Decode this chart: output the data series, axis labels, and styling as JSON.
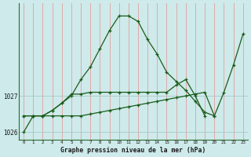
{
  "xlabel": "Graphe pression niveau de la mer (hPa)",
  "background_color": "#ceeaea",
  "vgrid_color": "#e89090",
  "hgrid_color": "#a0c4c4",
  "line_color": "#1a5c1a",
  "spine_color": "#2d6a2d",
  "hours": [
    0,
    1,
    2,
    3,
    4,
    5,
    6,
    7,
    8,
    9,
    10,
    11,
    12,
    13,
    14,
    15,
    16,
    17,
    18,
    19,
    20,
    21,
    22,
    23
  ],
  "line1": [
    1026.0,
    1026.45,
    1026.45,
    1026.6,
    1026.8,
    1027.0,
    1027.45,
    1027.8,
    1028.3,
    1028.8,
    1029.2,
    1029.2,
    1029.05,
    1028.55,
    1028.15,
    1027.65,
    1027.4,
    1027.15,
    1026.85,
    1026.55,
    1026.45,
    1027.1,
    1027.85,
    1028.7
  ],
  "line2_x": [
    0,
    1,
    2,
    3,
    4,
    5,
    6,
    7,
    8,
    9,
    10,
    11,
    12,
    13,
    14,
    15,
    16,
    17,
    18,
    19,
    20
  ],
  "line2_y": [
    1026.45,
    1026.45,
    1026.45,
    1026.45,
    1026.45,
    1026.45,
    1026.45,
    1026.5,
    1026.55,
    1026.6,
    1026.65,
    1026.7,
    1026.75,
    1026.8,
    1026.85,
    1026.9,
    1026.95,
    1027.0,
    1027.05,
    1027.1,
    1026.45
  ],
  "line3_x": [
    0,
    1,
    2,
    3,
    4,
    5,
    6,
    7,
    8,
    9,
    10,
    11,
    12,
    13,
    14,
    15,
    16,
    17,
    18,
    19
  ],
  "line3_y": [
    1026.45,
    1026.45,
    1026.45,
    1026.6,
    1026.8,
    1027.05,
    1027.05,
    1027.1,
    1027.1,
    1027.1,
    1027.1,
    1027.1,
    1027.1,
    1027.1,
    1027.1,
    1027.1,
    1027.3,
    1027.45,
    1027.0,
    1026.45
  ],
  "ylim": [
    1025.8,
    1029.55
  ],
  "ytick_positions": [
    1026,
    1027
  ],
  "ytick_labels": [
    "1026",
    "1027"
  ],
  "xticks": [
    0,
    1,
    2,
    3,
    4,
    5,
    6,
    7,
    8,
    9,
    10,
    11,
    12,
    13,
    14,
    15,
    16,
    17,
    18,
    19,
    20,
    21,
    22,
    23
  ]
}
